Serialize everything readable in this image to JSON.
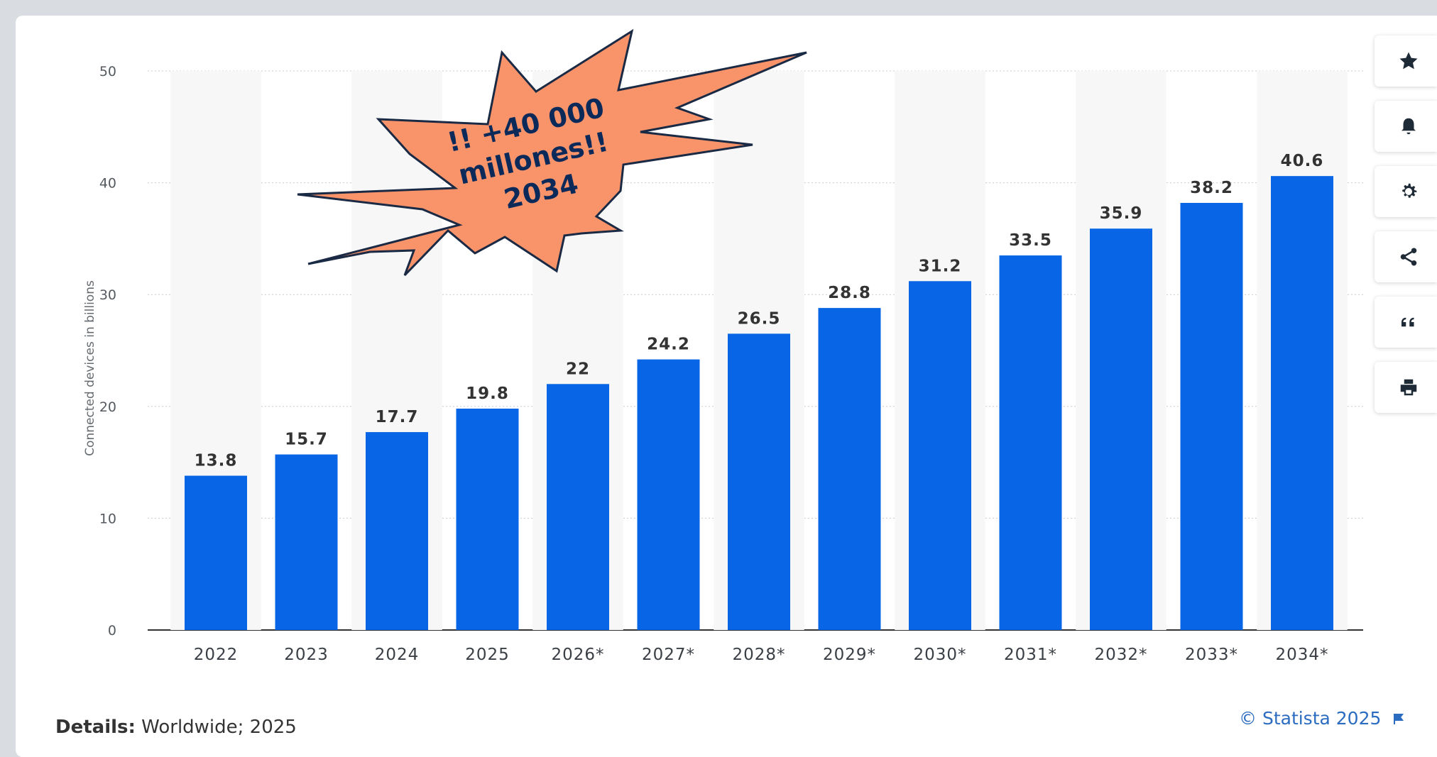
{
  "chart_data": {
    "type": "bar",
    "categories": [
      "2022",
      "2023",
      "2024",
      "2025",
      "2026*",
      "2027*",
      "2028*",
      "2029*",
      "2030*",
      "2031*",
      "2032*",
      "2033*",
      "2034*"
    ],
    "values": [
      13.8,
      15.7,
      17.7,
      19.8,
      22,
      24.2,
      26.5,
      28.8,
      31.2,
      33.5,
      35.9,
      38.2,
      40.6
    ],
    "value_labels": [
      "13.8",
      "15.7",
      "17.7",
      "19.8",
      "22",
      "24.2",
      "26.5",
      "28.8",
      "31.2",
      "33.5",
      "35.9",
      "38.2",
      "40.6"
    ],
    "ylabel": "Connected devices in billions",
    "ylim": [
      0,
      50
    ],
    "yticks": [
      0,
      10,
      20,
      30,
      40,
      50
    ],
    "grid": true,
    "bar_color": "#0866e6",
    "annotation": {
      "lines": [
        "!! +40 000",
        "millones!!",
        "2034"
      ],
      "fill": "#f9946a",
      "stroke": "#1b2a44"
    }
  },
  "footer": {
    "details_label": "Details:",
    "details_value": "Worldwide; 2025",
    "copyright": "© Statista 2025"
  },
  "toolbar": {
    "items": [
      {
        "name": "star-icon"
      },
      {
        "name": "bell-icon"
      },
      {
        "name": "gear-icon"
      },
      {
        "name": "share-icon"
      },
      {
        "name": "quote-icon"
      },
      {
        "name": "print-icon"
      }
    ]
  }
}
